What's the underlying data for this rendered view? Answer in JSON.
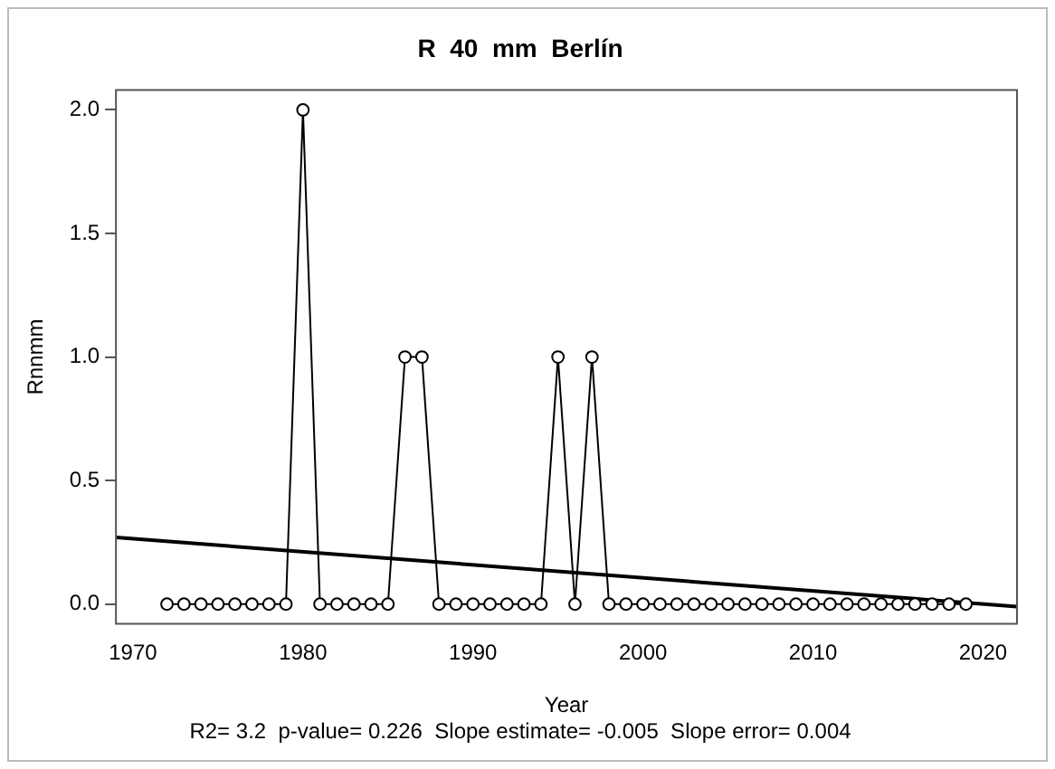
{
  "chart_data": {
    "type": "line",
    "title": "R  40  mm  Berlín",
    "xlabel": "Year",
    "ylabel": "Rnnmm",
    "annotations": [
      "R2= 3.2  p-value= 0.226  Slope estimate= -0.005  Slope error= 0.004"
    ],
    "xlim": [
      1969,
      2022
    ],
    "xticks": [
      1970,
      1980,
      1990,
      2000,
      2010,
      2020
    ],
    "ylim": [
      -0.08,
      2.08
    ],
    "yticks": [
      {
        "value": 0,
        "label": "0.0"
      },
      0.5,
      {
        "value": 1,
        "label": "1.0"
      },
      1.5,
      {
        "value": 2,
        "label": "2.0"
      }
    ],
    "series": [
      {
        "color": "#000000",
        "marker": "circle",
        "x": [
          1972,
          1973,
          1974,
          1975,
          1976,
          1977,
          1978,
          1979,
          1980,
          1981,
          1982,
          1983,
          1984,
          1985,
          1986,
          1987,
          1988,
          1989,
          1990,
          1991,
          1992,
          1993,
          1994,
          1995,
          1996,
          1997,
          1998,
          1999,
          2000,
          2001,
          2002,
          2003,
          2004,
          2005,
          2006,
          2007,
          2008,
          2009,
          2010,
          2011,
          2012,
          2013,
          2014,
          2015,
          2016,
          2017,
          2018,
          2019
        ],
        "values": [
          0,
          0,
          0,
          0,
          0,
          0,
          0,
          0,
          2,
          0,
          0,
          0,
          0,
          0,
          1,
          1,
          0,
          0,
          0,
          0,
          0,
          0,
          0,
          1,
          0,
          1,
          0,
          0,
          0,
          0,
          0,
          0,
          0,
          0,
          0,
          0,
          0,
          0,
          0,
          0,
          0,
          0,
          0,
          0,
          0,
          0,
          0,
          0
        ]
      },
      {
        "color": "#000000",
        "marker": "none",
        "x": [
          1969,
          2022
        ],
        "values": [
          0.27,
          -0.01
        ]
      }
    ]
  }
}
